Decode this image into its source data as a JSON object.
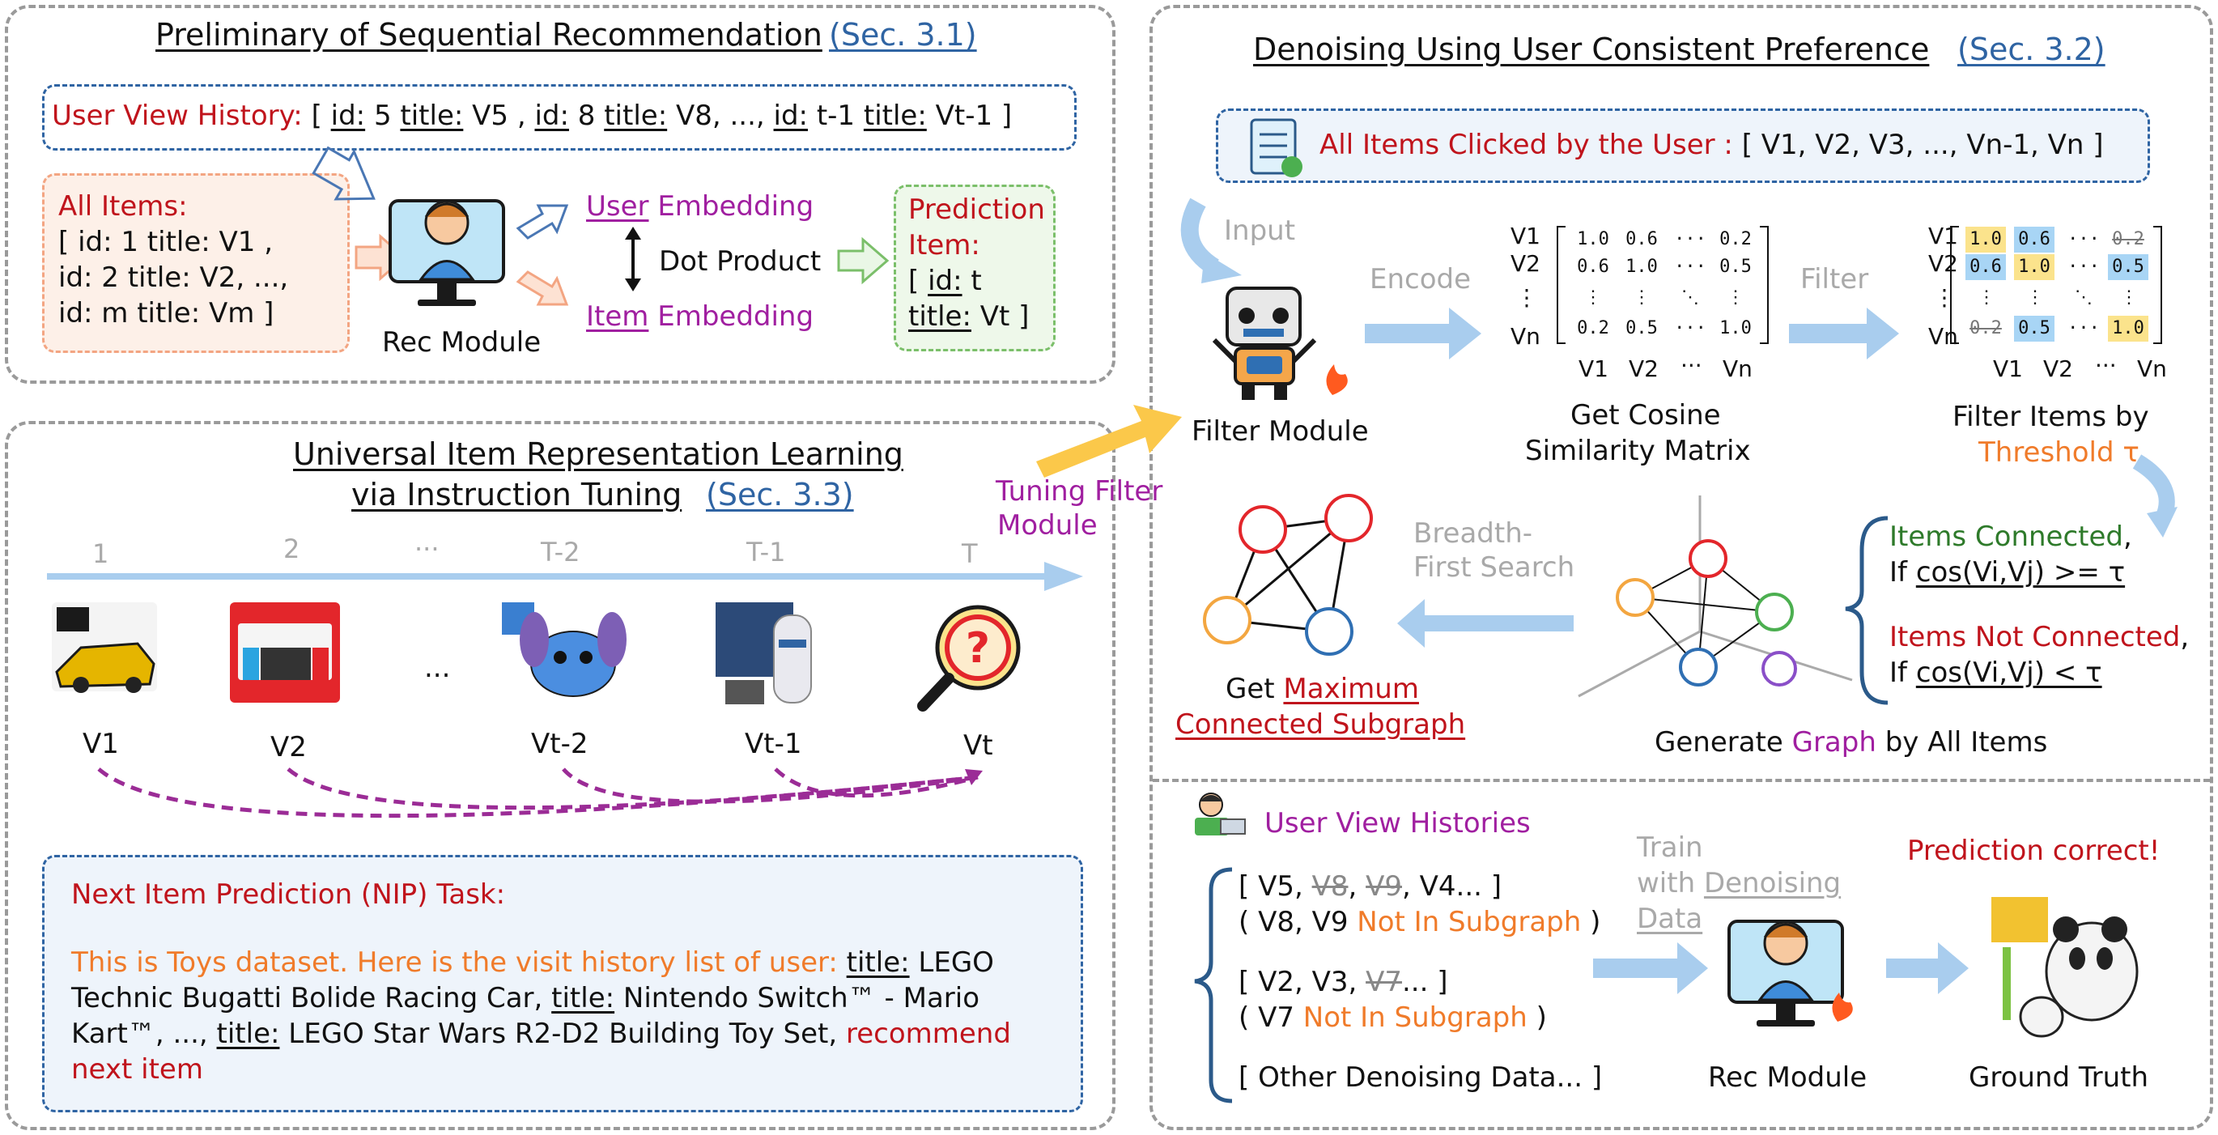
{
  "pre": {
    "title": "Preliminary of Sequential Recommendation",
    "sec": "(Sec. 3.1)",
    "history_label": "User View History:",
    "history_parts": [
      "[",
      "id:",
      "5",
      "title:",
      "V5 ,",
      "id:",
      "8",
      "title:",
      "V8, ...,",
      "id:",
      "t-1",
      "title:",
      "Vt-1 ]"
    ],
    "all_items_title": "All Items:",
    "all_items_lines": [
      "[ id: 1 title: V1 ,",
      "id: 2 title: V2, ...,",
      "id: m title: Vm ]"
    ],
    "rec_module": "Rec Module",
    "user_word": "User",
    "embedding": "Embedding",
    "dot_product": "Dot Product",
    "item_word": "Item",
    "prediction_lines": [
      "Prediction",
      "Item:"
    ],
    "pred_id_key": "id:",
    "pred_id_val": "t",
    "pred_title_key": "title:",
    "pred_title_val": "Vt ]",
    "pred_open": "["
  },
  "univ": {
    "title_line1": "Universal Item Representation Learning",
    "title_line2": "via Instruction Tuning",
    "sec": "(Sec. 3.3)",
    "tuning": [
      "Tuning Filter",
      "Module"
    ],
    "timeline": [
      "1",
      "2",
      "···",
      "T-2",
      "T-1",
      "T"
    ],
    "items": [
      "V1",
      "V2",
      "...",
      "Vt-2",
      "Vt-1",
      "Vt"
    ],
    "nip_title": "Next Item Prediction (NIP) Task:",
    "nip_orange": "This is Toys dataset. Here is the visit history list of user:",
    "nip_title_key": "title:",
    "nip_t1": "LEGO",
    "nip_l2a": "Technic Bugatti Bolide Racing Car,",
    "nip_t2": "Nintendo Switch™ - Mario",
    "nip_l3a": "Kart™, ...,",
    "nip_t3": "LEGO Star Wars R2-D2 Building Toy Set,",
    "nip_red1": "recommend",
    "nip_red2": "next item"
  },
  "den": {
    "title": "Denoising Using User Consistent Preference",
    "sec": "(Sec. 3.2)",
    "clicked_label": "All Items Clicked by the User :",
    "clicked_items": "[ V1, V2, V3, ..., Vn-1, Vn ]",
    "input": "Input",
    "encode": "Encode",
    "filter": "Filter",
    "filter_module": "Filter Module",
    "cosine": [
      "Get Cosine",
      "Similarity Matrix"
    ],
    "filter_items": "Filter Items by",
    "threshold": "Threshold τ",
    "row_labels": [
      "V1",
      "V2",
      "⋮",
      "Vn"
    ],
    "col_labels": [
      "V1",
      "V2",
      "···",
      "Vn"
    ],
    "matrix": [
      [
        "1.0",
        "0.6",
        "···",
        "0.2"
      ],
      [
        "0.6",
        "1.0",
        "···",
        "0.5"
      ],
      [
        "⋮",
        "⋮",
        "⋱",
        "⋮"
      ],
      [
        "0.2",
        "0.5",
        "···",
        "1.0"
      ]
    ],
    "connected": "Items Connected",
    "comma": ",",
    "if_word": "If",
    "cond_ge": "cos(Vi,Vj) >= τ",
    "not_connected": "Items Not Connected",
    "cond_lt": "cos(Vi,Vj) < τ",
    "bfs": [
      "Breadth-",
      "First Search"
    ],
    "get": "Get",
    "max_sub": [
      "Maximum",
      "Connected Subgraph"
    ],
    "generate": "Generate",
    "graph": "Graph",
    "by_all": "by All Items"
  },
  "train": {
    "histories": "User View Histories",
    "train_word": "Train",
    "with_word": "with",
    "denoising_word": "Denoising",
    "data_word": "Data",
    "h1_a": "[ V5,",
    "h1_s1": "V8",
    "h1_c": ",",
    "h1_s2": "V9",
    "h1_b": ", V4... ]",
    "h1_note_a": "( V8, V9",
    "not_in": "Not In Subgraph",
    "close_paren": ")",
    "h2_a": "[ V2, V3,",
    "h2_s": "V7",
    "h2_b": "... ]",
    "h2_note_a": "( V7",
    "other": "[ Other Denoising Data... ]",
    "rec_module": "Rec Module",
    "correct": "Prediction correct!",
    "ground": "Ground Truth"
  }
}
